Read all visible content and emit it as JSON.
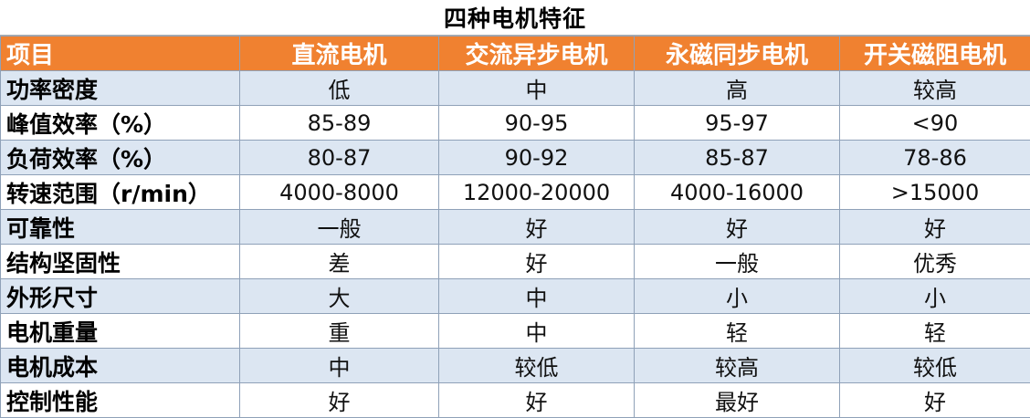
{
  "title": "四种电机特征",
  "header": [
    "项目",
    "直流电机",
    "交流异步电机",
    "永磁同步电机",
    "开关磁阻电机"
  ],
  "rows": [
    [
      "功率密度",
      "低",
      "中",
      "高",
      "较高"
    ],
    [
      "峰值效率（%）",
      "85-89",
      "90-95",
      "95-97",
      "<90"
    ],
    [
      "负荷效率（%）",
      "80-87",
      "90-92",
      "85-87",
      "78-86"
    ],
    [
      "转速范围（r/min）",
      "4000-8000",
      "12000-20000",
      "4000-16000",
      ">15000"
    ],
    [
      "可靠性",
      "一般",
      "好",
      "好",
      "好"
    ],
    [
      "结构坚固性",
      "差",
      "好",
      "一般",
      "优秀"
    ],
    [
      "外形尺寸",
      "大",
      "中",
      "小",
      "小"
    ],
    [
      "电机重量",
      "重",
      "中",
      "轻",
      "轻"
    ],
    [
      "电机成本",
      "中",
      "较低",
      "较高",
      "较低"
    ],
    [
      "控制性能",
      "好",
      "好",
      "最好",
      "好"
    ]
  ],
  "colors": {
    "header_bg": "#f08130",
    "header_text": "#ffffff",
    "band_bg": "#dce6f2",
    "grid": "#8fa1b8"
  }
}
